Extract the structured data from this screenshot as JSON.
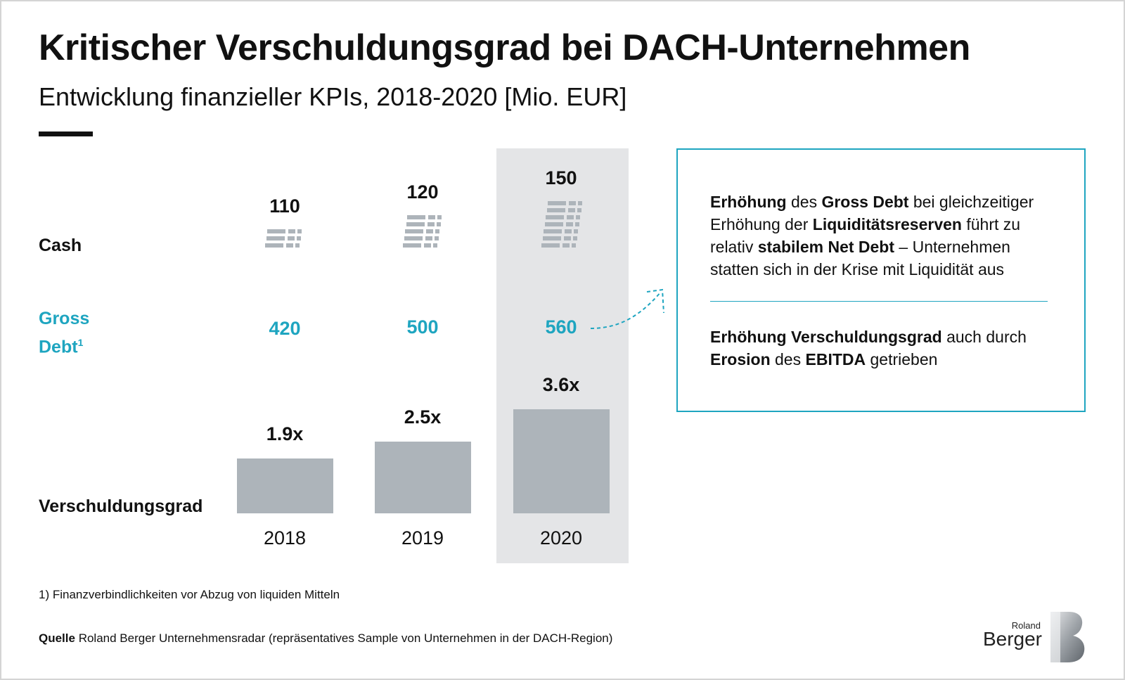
{
  "header": {
    "title": "Kritischer Verschuldungsgrad bei DACH-Unternehmen",
    "subtitle": "Entwicklung finanzieller KPIs, 2018-2020 [Mio. EUR]"
  },
  "rows": {
    "cash": "Cash",
    "gross_1": "Gross",
    "gross_2": "Debt",
    "gross_sup": "1",
    "leverage": "Verschuldungsgrad"
  },
  "chart_data": {
    "type": "bar",
    "categories": [
      "2018",
      "2019",
      "2020"
    ],
    "highlighted_category": "2020",
    "series": [
      {
        "name": "Cash",
        "values": [
          110,
          120,
          150
        ]
      },
      {
        "name": "Gross Debt",
        "values": [
          420,
          500,
          560
        ]
      },
      {
        "name": "Verschuldungsgrad",
        "values": [
          1.9,
          2.5,
          3.6
        ],
        "labels": [
          "1.9x",
          "2.5x",
          "3.6x"
        ]
      }
    ],
    "title": "",
    "colors": {
      "bar": "#adb4ba",
      "accent": "#1ea5c0",
      "highlight_bg": "#e4e5e7"
    }
  },
  "notes": {
    "note1": [
      {
        "t": "Erhöhung",
        "b": true
      },
      {
        "t": " des ",
        "b": false
      },
      {
        "t": "Gross Debt",
        "b": true
      },
      {
        "t": " bei gleichzeitiger Erhöhung der ",
        "b": false
      },
      {
        "t": "Liquiditätsreserven",
        "b": true
      },
      {
        "t": " führt zu relativ ",
        "b": false
      },
      {
        "t": "stabilem Net Debt",
        "b": true
      },
      {
        "t": " – Unternehmen statten sich in der Krise mit Liquidität aus",
        "b": false
      }
    ],
    "note2": [
      {
        "t": "Erhöhung Verschuldungsgrad",
        "b": true
      },
      {
        "t": " auch durch ",
        "b": false
      },
      {
        "t": "Erosion",
        "b": true
      },
      {
        "t": " des ",
        "b": false
      },
      {
        "t": "EBITDA",
        "b": true
      },
      {
        "t": " getrieben",
        "b": false
      }
    ]
  },
  "footer": {
    "footnote": "1) Finanzverbindlichkeiten vor Abzug von liquiden Mitteln",
    "source_label": "Quelle",
    "source_text": " Roland Berger Unternehmensradar (repräsentatives Sample von Unternehmen in der DACH-Region)",
    "logo_line1": "Roland",
    "logo_line2": "Berger"
  }
}
